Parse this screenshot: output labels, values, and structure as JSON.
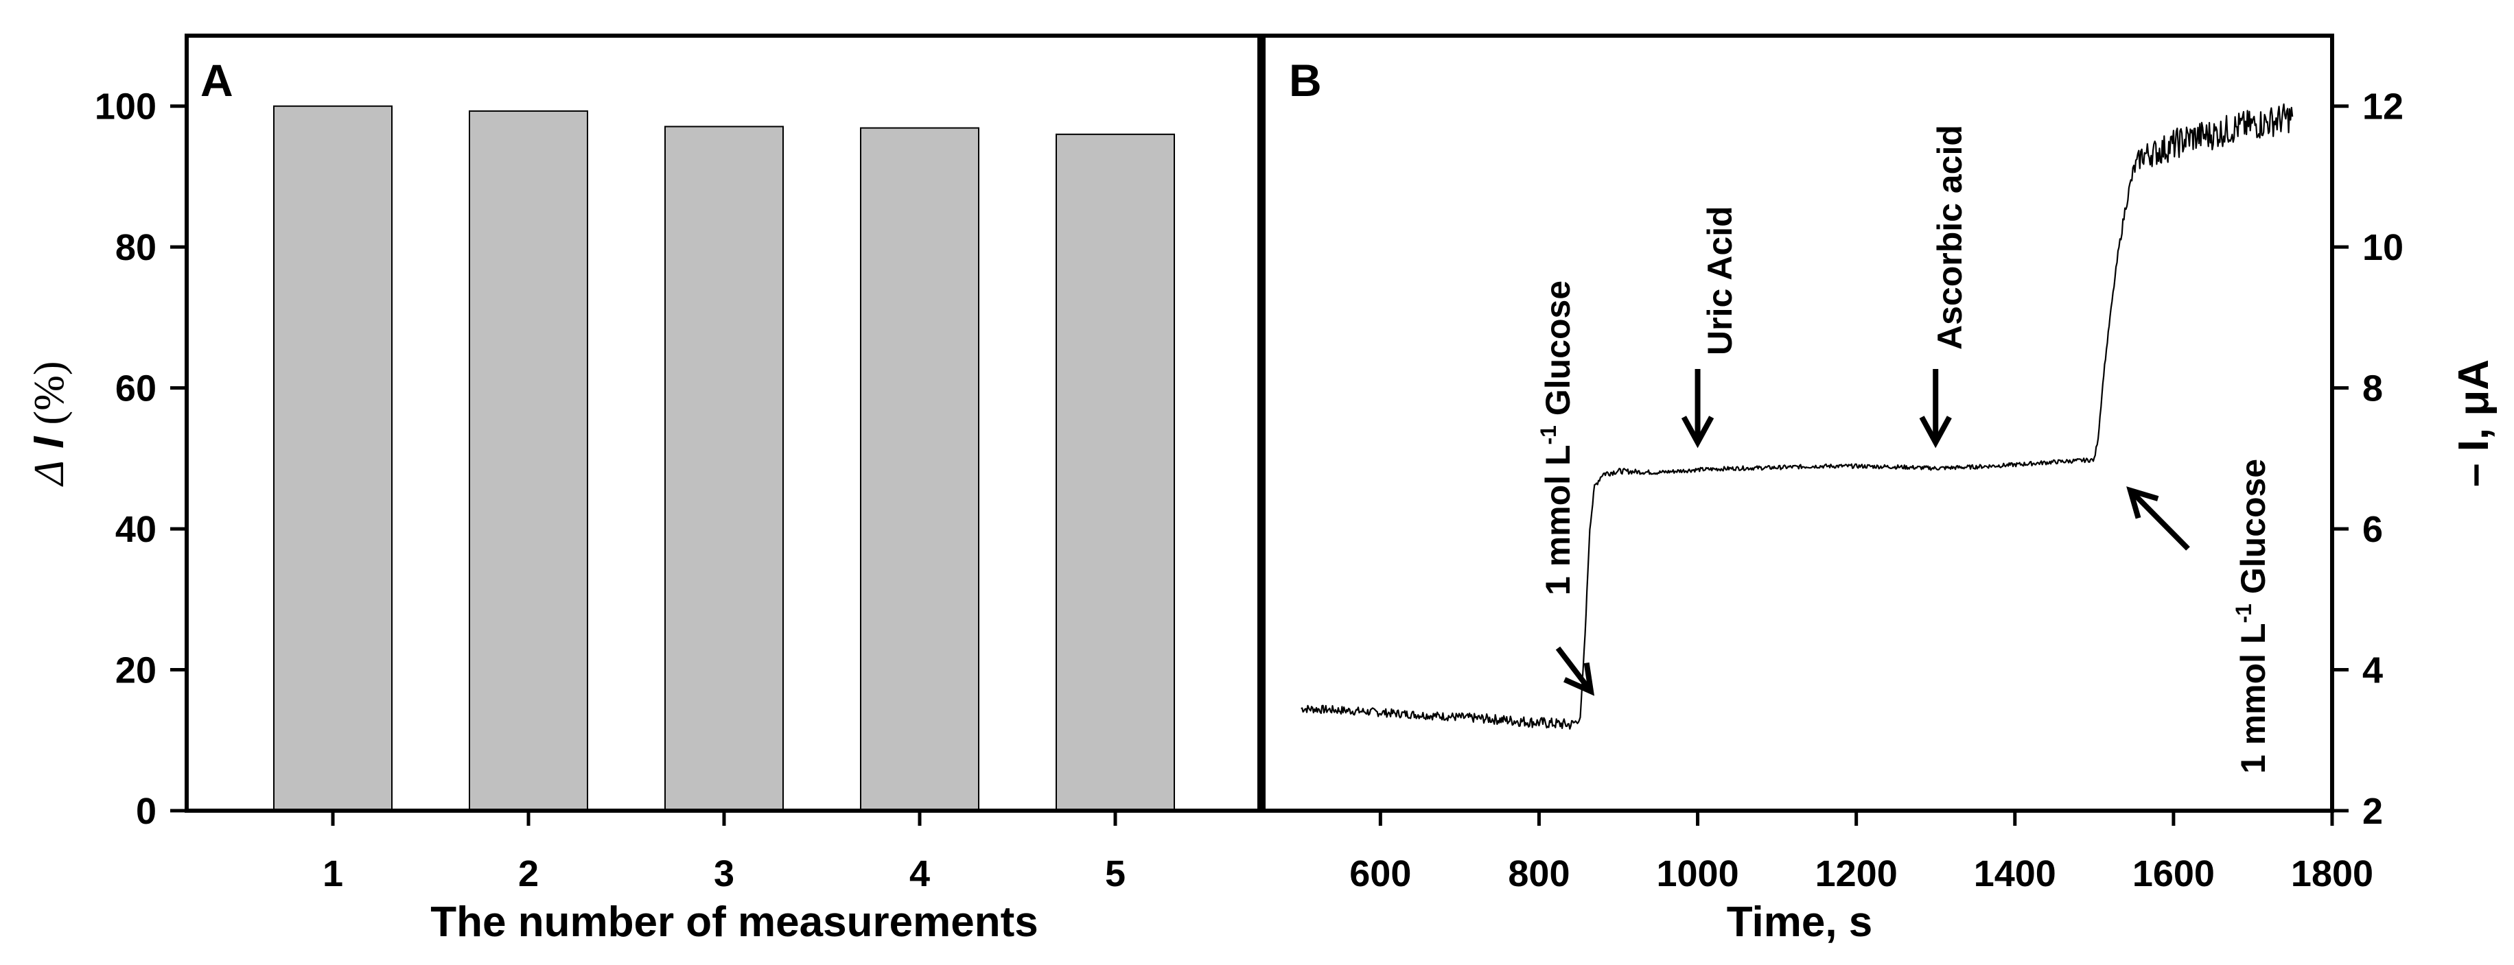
{
  "chart_data": [
    {
      "panel": "A",
      "type": "bar",
      "xlabel": "The number of measurements",
      "ylabel_symbol": "Δ",
      "ylabel_var": "I",
      "ylabel_unit": "(%)",
      "categories": [
        "1",
        "2",
        "3",
        "4",
        "5"
      ],
      "values": [
        100,
        99.3,
        97.1,
        96.9,
        96.0
      ],
      "ylim": [
        0,
        110
      ],
      "yticks": [
        0,
        20,
        40,
        60,
        80,
        100
      ],
      "bar_color": "#c0c0c0",
      "grid": false
    },
    {
      "panel": "B",
      "type": "line",
      "xlabel": "Time, s",
      "ylabel": "– I, μA",
      "xlim": [
        450,
        1800
      ],
      "ylim": [
        2,
        13
      ],
      "xticks": [
        600,
        800,
        1000,
        1200,
        1400,
        1600,
        1800
      ],
      "yticks": [
        2,
        4,
        6,
        8,
        10,
        12
      ],
      "series": [
        {
          "name": "current",
          "x": [
            500,
            560,
            620,
            680,
            740,
            800,
            840,
            852,
            858,
            864,
            870,
            880,
            900,
            950,
            1000,
            1050,
            1100,
            1150,
            1200,
            1250,
            1300,
            1350,
            1400,
            1450,
            1500,
            1505,
            1512,
            1520,
            1530,
            1540,
            1550,
            1560,
            1580,
            1600,
            1620,
            1650,
            1680,
            1710,
            1750
          ],
          "y": [
            3.45,
            3.42,
            3.38,
            3.34,
            3.3,
            3.25,
            3.22,
            3.3,
            4.5,
            6.0,
            6.6,
            6.78,
            6.82,
            6.8,
            6.84,
            6.86,
            6.87,
            6.89,
            6.89,
            6.88,
            6.86,
            6.88,
            6.91,
            6.95,
            6.98,
            7.3,
            8.2,
            9.0,
            9.9,
            10.6,
            11.1,
            11.3,
            11.35,
            11.45,
            11.55,
            11.6,
            11.7,
            11.75,
            11.85
          ],
          "noise": [
            0.06,
            0.06,
            0.06,
            0.06,
            0.07,
            0.08,
            0.08,
            0.03,
            0.02,
            0.02,
            0.04,
            0.05,
            0.04,
            0.03,
            0.03,
            0.03,
            0.03,
            0.03,
            0.03,
            0.03,
            0.03,
            0.03,
            0.03,
            0.03,
            0.03,
            0.03,
            0.03,
            0.03,
            0.05,
            0.08,
            0.12,
            0.18,
            0.2,
            0.22,
            0.22,
            0.22,
            0.22,
            0.22,
            0.22
          ],
          "color": "#000000"
        }
      ],
      "annotations": [
        {
          "text_main": "1 mmol L",
          "text_sup": "-1",
          "text_tail": " Glucose",
          "at_x": 840,
          "at_y": 3.5
        },
        {
          "text": "Uric Acid",
          "at_x": 1000,
          "at_y": 7.0
        },
        {
          "text": "Ascorbic acid",
          "at_x": 1300,
          "at_y": 7.0
        },
        {
          "text_main": "1 mmol L",
          "text_sup": "-1",
          "text_tail": " Glucose",
          "at_x": 1512,
          "at_y": 7.0
        }
      ]
    }
  ]
}
